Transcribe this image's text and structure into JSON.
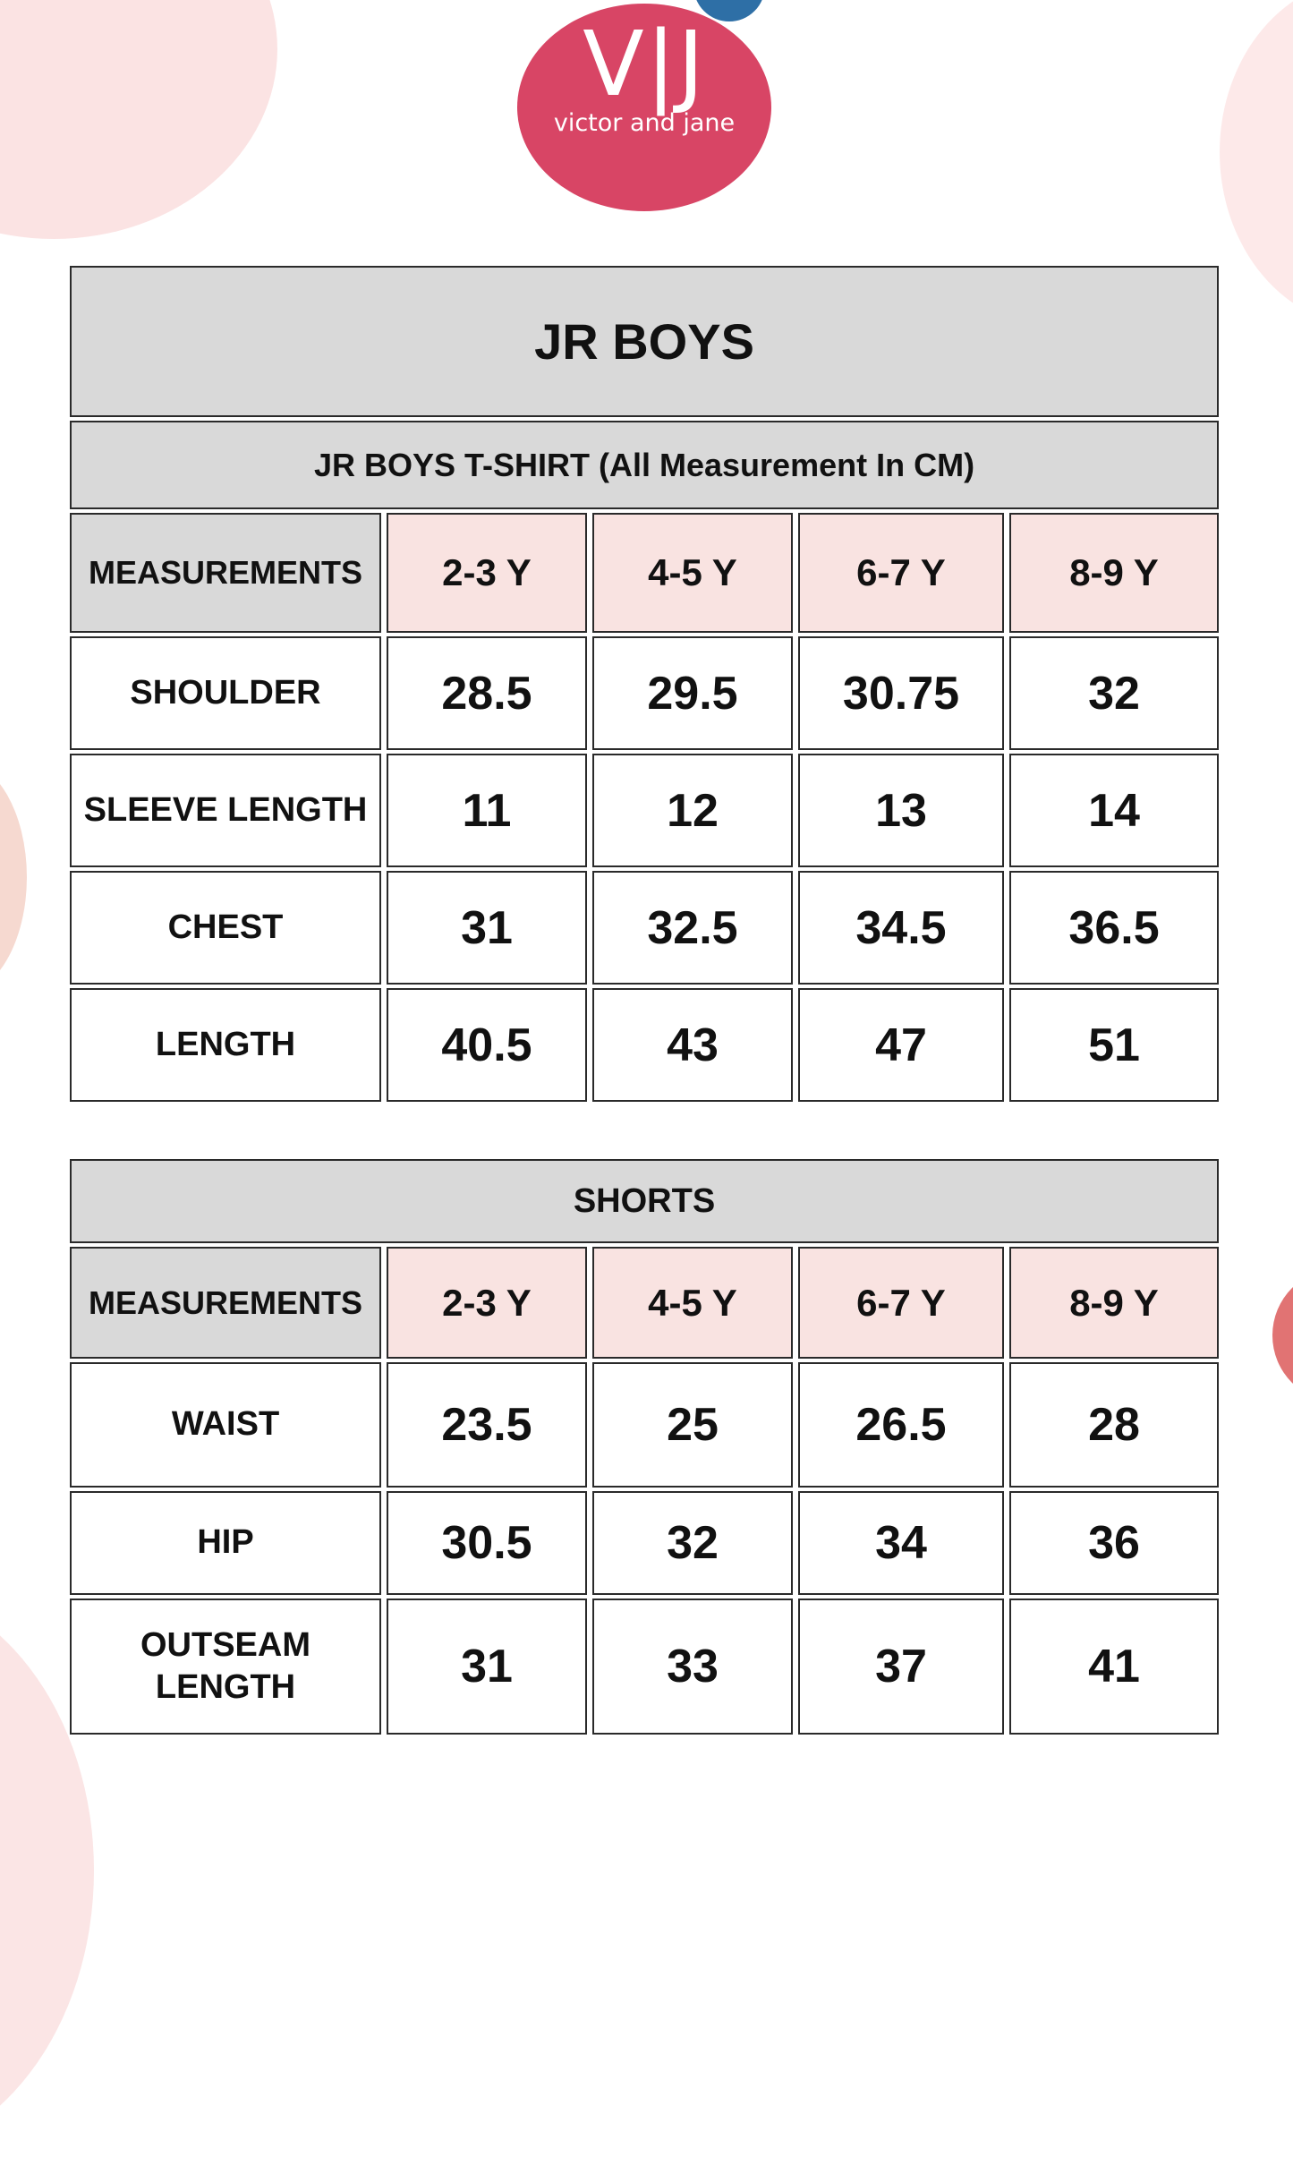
{
  "logo": {
    "monogram": "V|J",
    "tagline": "victor and jane",
    "circle_color": "#d84565",
    "accent_circle_color": "#2e6fa6"
  },
  "colors": {
    "header_gray": "#d9d9d9",
    "size_header_pink": "#f9e3e1",
    "cell_border": "#2a2a2a",
    "blob_light_pink": "#fbe3e3",
    "blob_peach_pink": "#f6d9d0",
    "salmon_circle": "#e17373",
    "page_background": "#ffffff"
  },
  "tshirt_table": {
    "title": "JR BOYS",
    "subtitle": "JR BOYS T-SHIRT (All Measurement In CM)",
    "columns": [
      "MEASUREMENTS",
      "2-3 Y",
      "4-5 Y",
      "6-7 Y",
      "8-9 Y"
    ],
    "rows": [
      {
        "label": "SHOULDER",
        "values": [
          "28.5",
          "29.5",
          "30.75",
          "32"
        ]
      },
      {
        "label": "SLEEVE LENGTH",
        "values": [
          "11",
          "12",
          "13",
          "14"
        ]
      },
      {
        "label": "CHEST",
        "values": [
          "31",
          "32.5",
          "34.5",
          "36.5"
        ]
      },
      {
        "label": "LENGTH",
        "values": [
          "40.5",
          "43",
          "47",
          "51"
        ]
      }
    ]
  },
  "shorts_table": {
    "title": "SHORTS",
    "columns": [
      "MEASUREMENTS",
      "2-3 Y",
      "4-5 Y",
      "6-7 Y",
      "8-9 Y"
    ],
    "rows": [
      {
        "label": "WAIST",
        "values": [
          "23.5",
          "25",
          "26.5",
          "28"
        ]
      },
      {
        "label": "HIP",
        "values": [
          "30.5",
          "32",
          "34",
          "36"
        ]
      },
      {
        "label": "OUTSEAM LENGTH",
        "values": [
          "31",
          "33",
          "37",
          "41"
        ]
      }
    ]
  }
}
